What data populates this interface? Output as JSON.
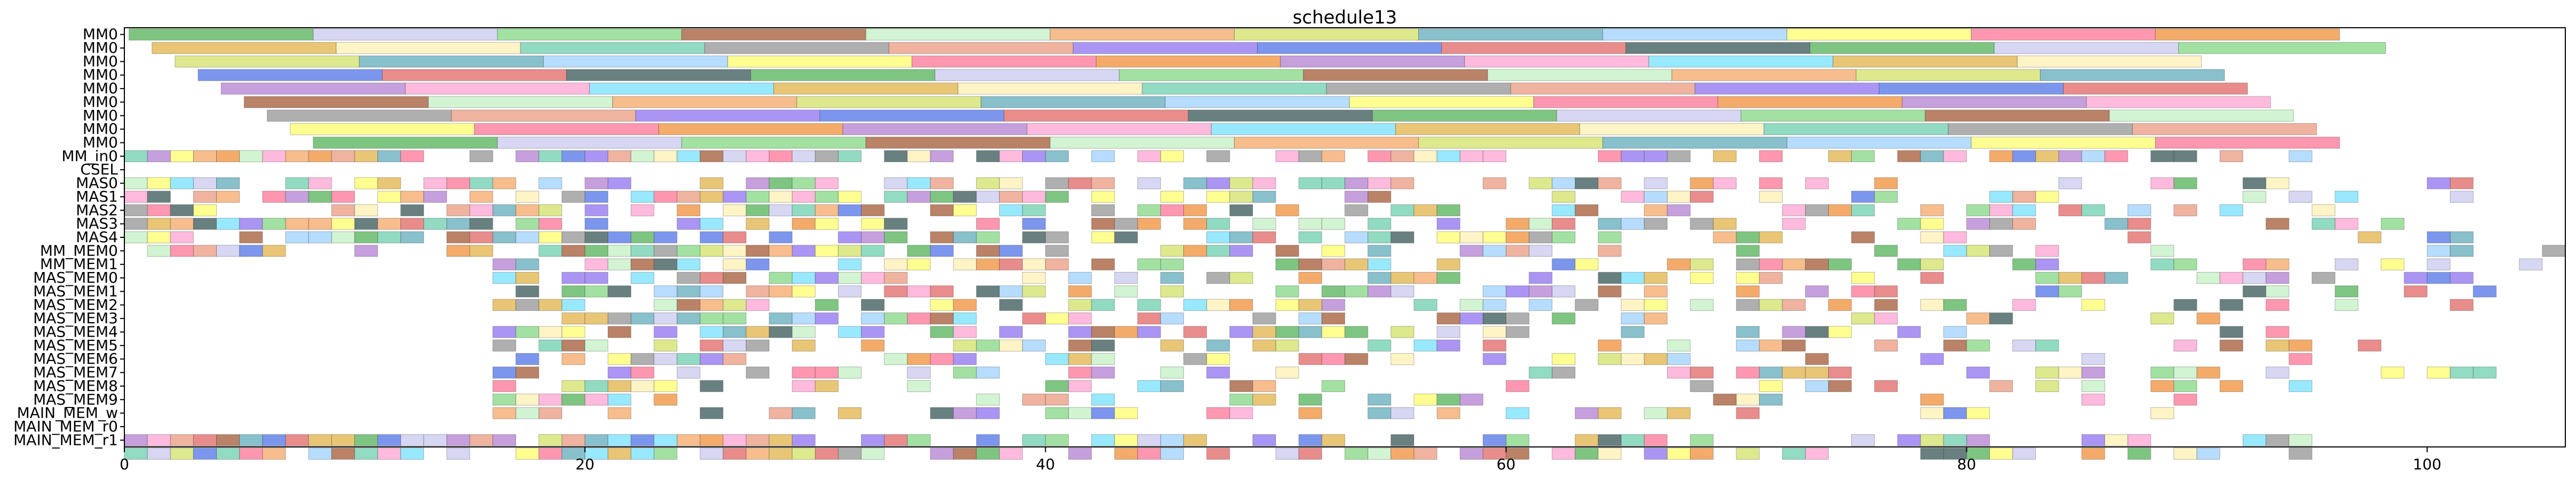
{
  "chart_data": {
    "type": "gantt",
    "title": "schedule13",
    "xlabel": "",
    "ylabel": "",
    "xlim": [
      0,
      106
    ],
    "x_ticks": [
      0,
      20,
      40,
      60,
      80,
      100
    ],
    "rows": [
      "MM0",
      "MM0",
      "MM0",
      "MM0",
      "MM0",
      "MM0",
      "MM0",
      "MM0",
      "MM0",
      "MM_in0",
      "CSEL",
      "MAS0",
      "MAS1",
      "MAS2",
      "MAS3",
      "MAS4",
      "MM_MEM0",
      "MM_MEM1",
      "MAS_MEM0",
      "MAS_MEM1",
      "MAS_MEM2",
      "MAS_MEM3",
      "MAS_MEM4",
      "MAS_MEM5",
      "MAS_MEM6",
      "MAS_MEM7",
      "MAS_MEM8",
      "MAS_MEM9",
      "MAIN_MEM_w",
      "MAIN_MEM_r0",
      "MAIN_MEM_r1"
    ],
    "grid": false,
    "palette": [
      "#4caf50",
      "#f4a460",
      "#ff6f91",
      "#e0b040",
      "#8a6cf0",
      "#c8c8f0",
      "#d0e060",
      "#f08a30",
      "#fff0b0",
      "#4a6ee8",
      "#7ed67e",
      "#5aa8b8",
      "#b07ad0",
      "#66cdaa",
      "#e06060",
      "#a0522d",
      "#9ad0ff",
      "#ffa0d0",
      "#909090",
      "#2f4f4f",
      "#c0f0c0",
      "#ffff66",
      "#70e0ff",
      "#e9967a"
    ],
    "long_tasks": [
      [
        [
          0.2,
          8.2
        ],
        [
          8.2,
          16.2
        ],
        [
          16.2,
          24.2
        ],
        [
          24.2,
          32.2
        ],
        [
          32.2,
          40.2
        ],
        [
          40.2,
          48.2
        ],
        [
          48.2,
          56.2
        ],
        [
          56.2,
          64.2
        ],
        [
          64.2,
          72.2
        ],
        [
          72.2,
          80.2
        ],
        [
          80.2,
          88.2
        ],
        [
          88.2,
          96.2
        ]
      ],
      [
        [
          1.2,
          9.2
        ],
        [
          9.2,
          17.2
        ],
        [
          17.2,
          25.2
        ],
        [
          25.2,
          33.2
        ],
        [
          33.2,
          41.2
        ],
        [
          41.2,
          49.2
        ],
        [
          49.2,
          57.2
        ],
        [
          57.2,
          65.2
        ],
        [
          65.2,
          73.2
        ],
        [
          73.2,
          81.2
        ],
        [
          81.2,
          89.2
        ],
        [
          89.2,
          98.2
        ]
      ],
      [
        [
          2.2,
          10.2
        ],
        [
          10.2,
          18.2
        ],
        [
          18.2,
          26.2
        ],
        [
          26.2,
          34.2
        ],
        [
          34.2,
          42.2
        ],
        [
          42.2,
          50.2
        ],
        [
          50.2,
          58.2
        ],
        [
          58.2,
          66.2
        ],
        [
          66.2,
          74.2
        ],
        [
          74.2,
          82.2
        ],
        [
          82.2,
          90.2
        ]
      ],
      [
        [
          3.2,
          11.2
        ],
        [
          11.2,
          19.2
        ],
        [
          19.2,
          27.2
        ],
        [
          27.2,
          35.2
        ],
        [
          35.2,
          43.2
        ],
        [
          43.2,
          51.2
        ],
        [
          51.2,
          59.2
        ],
        [
          59.2,
          67.2
        ],
        [
          67.2,
          75.2
        ],
        [
          75.2,
          83.2
        ],
        [
          83.2,
          91.2
        ]
      ],
      [
        [
          4.2,
          12.2
        ],
        [
          12.2,
          20.2
        ],
        [
          20.2,
          28.2
        ],
        [
          28.2,
          36.2
        ],
        [
          36.2,
          44.2
        ],
        [
          44.2,
          52.2
        ],
        [
          52.2,
          60.2
        ],
        [
          60.2,
          68.2
        ],
        [
          68.2,
          76.2
        ],
        [
          76.2,
          84.2
        ],
        [
          84.2,
          92.2
        ]
      ],
      [
        [
          5.2,
          13.2
        ],
        [
          13.2,
          21.2
        ],
        [
          21.2,
          29.2
        ],
        [
          29.2,
          37.2
        ],
        [
          37.2,
          45.2
        ],
        [
          45.2,
          53.2
        ],
        [
          53.2,
          61.2
        ],
        [
          61.2,
          69.2
        ],
        [
          69.2,
          77.2
        ],
        [
          77.2,
          85.2
        ],
        [
          85.2,
          93.2
        ]
      ],
      [
        [
          6.2,
          14.2
        ],
        [
          14.2,
          22.2
        ],
        [
          22.2,
          30.2
        ],
        [
          30.2,
          38.2
        ],
        [
          38.2,
          46.2
        ],
        [
          46.2,
          54.2
        ],
        [
          54.2,
          62.2
        ],
        [
          62.2,
          70.2
        ],
        [
          70.2,
          78.2
        ],
        [
          78.2,
          86.2
        ],
        [
          86.2,
          94.2
        ]
      ],
      [
        [
          7.2,
          15.2
        ],
        [
          15.2,
          23.2
        ],
        [
          23.2,
          31.2
        ],
        [
          31.2,
          39.2
        ],
        [
          39.2,
          47.2
        ],
        [
          47.2,
          55.2
        ],
        [
          55.2,
          63.2
        ],
        [
          63.2,
          71.2
        ],
        [
          71.2,
          79.2
        ],
        [
          79.2,
          87.2
        ],
        [
          87.2,
          95.2
        ]
      ],
      [
        [
          8.2,
          16.2
        ],
        [
          16.2,
          24.2
        ],
        [
          24.2,
          32.2
        ],
        [
          32.2,
          40.2
        ],
        [
          40.2,
          48.2
        ],
        [
          48.2,
          56.2
        ],
        [
          56.2,
          64.2
        ],
        [
          64.2,
          72.2
        ],
        [
          72.2,
          80.2
        ],
        [
          80.2,
          88.2
        ],
        [
          88.2,
          96.2
        ]
      ]
    ],
    "short_task_spans": [
      [
        0,
        95
      ],
      [
        0,
        0
      ],
      [
        0,
        103
      ],
      [
        0,
        104
      ],
      [
        0,
        98
      ],
      [
        0,
        99
      ],
      [
        0,
        103
      ],
      [
        0,
        106
      ],
      [
        16,
        105
      ],
      [
        16,
        104
      ],
      [
        16,
        103
      ],
      [
        16,
        102
      ],
      [
        16,
        100
      ],
      [
        16,
        99
      ],
      [
        16,
        99
      ],
      [
        16,
        97
      ],
      [
        16,
        104
      ],
      [
        16,
        101
      ],
      [
        16,
        103
      ],
      [
        16,
        103
      ],
      [
        0,
        0
      ],
      [
        0,
        96
      ],
      [
        0,
        95
      ]
    ],
    "short_task_density": [
      0.9,
      0,
      0.85,
      0.8,
      0.8,
      0.8,
      0.8,
      0.75,
      0.75,
      0.7,
      0.7,
      0.7,
      0.65,
      0.65,
      0.6,
      0.55,
      0.55,
      0.5,
      0.45,
      0.45,
      0,
      0.95,
      0.95
    ],
    "short_task_unit": 1
  }
}
